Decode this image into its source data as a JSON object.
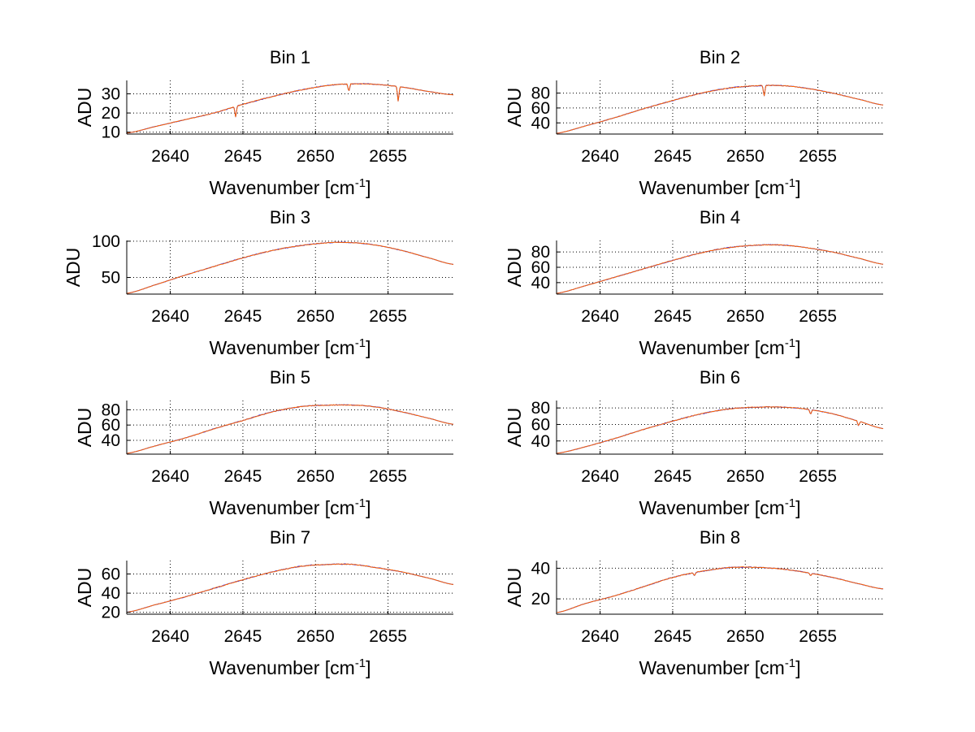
{
  "figure": {
    "background": "#ffffff",
    "grid": true,
    "grid_style": "dotted",
    "series_colors": [
      "#0000ff",
      "#ff6600"
    ]
  },
  "chart_data": [
    {
      "type": "line",
      "title": "Bin 1",
      "xlabel": "Wavenumber [cm",
      "xlabel_sup": "-1",
      "xlabel_end": "]",
      "ylabel": "ADU",
      "xlim": [
        2637,
        2659.5
      ],
      "ylim": [
        9,
        37
      ],
      "xticks": [
        2640,
        2645,
        2650,
        2655
      ],
      "yticks": [
        10,
        20,
        30
      ],
      "x": [
        2637,
        2639,
        2641,
        2643,
        2645,
        2647,
        2649,
        2651,
        2652.5,
        2654,
        2656,
        2658,
        2659.5
      ],
      "y": [
        9.5,
        13,
        16.5,
        20,
        24.5,
        28.5,
        32,
        34.5,
        35.2,
        35,
        33.5,
        31,
        29.5
      ],
      "dips": [
        {
          "x": 2644.5,
          "y": 18
        },
        {
          "x": 2655.7,
          "y": 26
        },
        {
          "x": 2652.3,
          "y": 31
        }
      ]
    },
    {
      "type": "line",
      "title": "Bin 2",
      "xlabel": "Wavenumber [cm",
      "xlabel_sup": "-1",
      "xlabel_end": "]",
      "ylabel": "ADU",
      "xlim": [
        2637,
        2659.5
      ],
      "ylim": [
        25,
        97
      ],
      "xticks": [
        2640,
        2645,
        2650,
        2655
      ],
      "yticks": [
        40,
        60,
        80
      ],
      "x": [
        2637,
        2639,
        2641,
        2643,
        2645,
        2647,
        2649,
        2651,
        2652.5,
        2654,
        2656,
        2658,
        2659.5
      ],
      "y": [
        26,
        36,
        47,
        59,
        70,
        80,
        87,
        90,
        90,
        87,
        80,
        71,
        64
      ],
      "dips": [
        {
          "x": 2651.3,
          "y": 76
        }
      ]
    },
    {
      "type": "line",
      "title": "Bin 3",
      "xlabel": "Wavenumber [cm",
      "xlabel_sup": "-1",
      "xlabel_end": "]",
      "ylabel": "ADU",
      "xlim": [
        2637,
        2659.5
      ],
      "ylim": [
        27,
        101
      ],
      "xticks": [
        2640,
        2645,
        2650,
        2655
      ],
      "yticks": [
        50,
        100
      ],
      "x": [
        2637,
        2639,
        2641,
        2643,
        2645,
        2647,
        2649,
        2651,
        2652.5,
        2654,
        2656,
        2658,
        2659.5
      ],
      "y": [
        28,
        40,
        53,
        65,
        77,
        87,
        94,
        98,
        98,
        95,
        87,
        76,
        68
      ],
      "dips": []
    },
    {
      "type": "line",
      "title": "Bin 4",
      "xlabel": "Wavenumber [cm",
      "xlabel_sup": "-1",
      "xlabel_end": "]",
      "ylabel": "ADU",
      "xlim": [
        2637,
        2659.5
      ],
      "ylim": [
        25,
        95
      ],
      "xticks": [
        2640,
        2645,
        2650,
        2655
      ],
      "yticks": [
        40,
        60,
        80
      ],
      "x": [
        2637,
        2639,
        2641,
        2643,
        2645,
        2647,
        2649,
        2651,
        2652.5,
        2654,
        2656,
        2658,
        2659.5
      ],
      "y": [
        26,
        36,
        47,
        58,
        69,
        79,
        86,
        89,
        89,
        86,
        80,
        71,
        64
      ],
      "dips": []
    },
    {
      "type": "line",
      "title": "Bin 5",
      "xlabel": "Wavenumber [cm",
      "xlabel_sup": "-1",
      "xlabel_end": "]",
      "ylabel": "ADU",
      "xlim": [
        2637,
        2659.5
      ],
      "ylim": [
        22,
        92
      ],
      "xticks": [
        2640,
        2645,
        2650,
        2655
      ],
      "yticks": [
        40,
        60,
        80
      ],
      "x": [
        2637,
        2639,
        2641,
        2643,
        2645,
        2647,
        2649,
        2651,
        2652.5,
        2654,
        2656,
        2658,
        2659.5
      ],
      "y": [
        23,
        33,
        43,
        55,
        66,
        77,
        84,
        86,
        86,
        84,
        77,
        68,
        61
      ],
      "dips": []
    },
    {
      "type": "line",
      "title": "Bin 6",
      "xlabel": "Wavenumber [cm",
      "xlabel_sup": "-1",
      "xlabel_end": "]",
      "ylabel": "ADU",
      "xlim": [
        2637,
        2659.5
      ],
      "ylim": [
        24,
        89
      ],
      "xticks": [
        2640,
        2645,
        2650,
        2655
      ],
      "yticks": [
        40,
        60,
        80
      ],
      "x": [
        2637,
        2639,
        2641,
        2643,
        2645,
        2647,
        2649,
        2651,
        2652.5,
        2654,
        2656,
        2658,
        2659.5
      ],
      "y": [
        25,
        33,
        43,
        54,
        64,
        73,
        79,
        81,
        81,
        79,
        73,
        63,
        55
      ],
      "dips": [
        {
          "x": 2657.8,
          "y": 58
        },
        {
          "x": 2654.5,
          "y": 72
        }
      ]
    },
    {
      "type": "line",
      "title": "Bin 7",
      "xlabel": "Wavenumber [cm",
      "xlabel_sup": "-1",
      "xlabel_end": "]",
      "ylabel": "ADU",
      "xlim": [
        2637,
        2659.5
      ],
      "ylim": [
        18,
        74
      ],
      "xticks": [
        2640,
        2645,
        2650,
        2655
      ],
      "yticks": [
        20,
        40,
        60
      ],
      "x": [
        2637,
        2639,
        2641,
        2643,
        2645,
        2647,
        2649,
        2651,
        2652.5,
        2654,
        2656,
        2658,
        2659.5
      ],
      "y": [
        20,
        28,
        36,
        45,
        54,
        62,
        68,
        70,
        70,
        67,
        62,
        55,
        49
      ],
      "dips": []
    },
    {
      "type": "line",
      "title": "Bin 8",
      "xlabel": "Wavenumber [cm",
      "xlabel_sup": "-1",
      "xlabel_end": "]",
      "ylabel": "ADU",
      "xlim": [
        2637,
        2659.5
      ],
      "ylim": [
        10,
        45
      ],
      "xticks": [
        2640,
        2645,
        2650,
        2655
      ],
      "yticks": [
        20,
        40
      ],
      "x": [
        2637,
        2639,
        2641,
        2643,
        2645,
        2647,
        2649,
        2651,
        2652.5,
        2654,
        2656,
        2658,
        2659.5
      ],
      "y": [
        11,
        17,
        22,
        28,
        34,
        38,
        40.5,
        40.5,
        39.5,
        37.5,
        34,
        29.5,
        26.5
      ],
      "dips": [
        {
          "x": 2646.5,
          "y": 35
        },
        {
          "x": 2654.5,
          "y": 35
        }
      ]
    }
  ]
}
